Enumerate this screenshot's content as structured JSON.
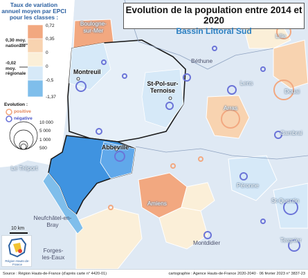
{
  "title": "Evolution de la population entre 2014 et 2020",
  "subtitle": "Bassin Littoral Sud",
  "legend": {
    "title": "Taux de variation annuel moyen par EPCI pour les classes :",
    "classes": [
      {
        "label": "0,72",
        "color": "#f2a880"
      },
      {
        "label": "0,35",
        "color": "#f8d3b0"
      },
      {
        "label": "0",
        "color": "#fbefd8"
      },
      {
        "label": "-0,5",
        "color": "#d6e9f8"
      },
      {
        "label": "-1,37",
        "color": "#7fbeeb"
      }
    ],
    "national_ref": "0,30 moy. nationale",
    "regional_ref": "-0,02 moy. régionale",
    "evolution_title": "Evolution :",
    "positive_label": "positive",
    "negative_label": "négative",
    "size_labels": [
      "10 000",
      "5 000",
      "1 000",
      "500"
    ]
  },
  "cities": {
    "boulogne": "Boulogne-sur-Mer",
    "lille": "Lille",
    "bethune": "Béthune",
    "montreuil": "Montreuil",
    "stpol": "St-Pol-sur-Ternoise",
    "lens": "Lens",
    "douai": "Douai",
    "arras": "Arras",
    "cambrai": "Cambrai",
    "abbeville": "Abbeville",
    "letreport": "Le Tréport",
    "peronne": "Péronne",
    "stquentin": "St-Quentin",
    "amiens": "Amiens",
    "neufchatel": "Neufchâtel-en-Bray",
    "montdidier": "Montdidier",
    "tergnier": "Tergnier",
    "forges": "Forges-les-Eaux"
  },
  "scale_bar": "10 km",
  "logo": "Région Hauts-de-France",
  "footer": {
    "source": "Source : Région Hauts-de-France (d'après carte n° 4420-01)",
    "credit": "cartographie : Agence Hauts-de-France 2020-2040 · 06 février 2023 n° 3837-23"
  }
}
